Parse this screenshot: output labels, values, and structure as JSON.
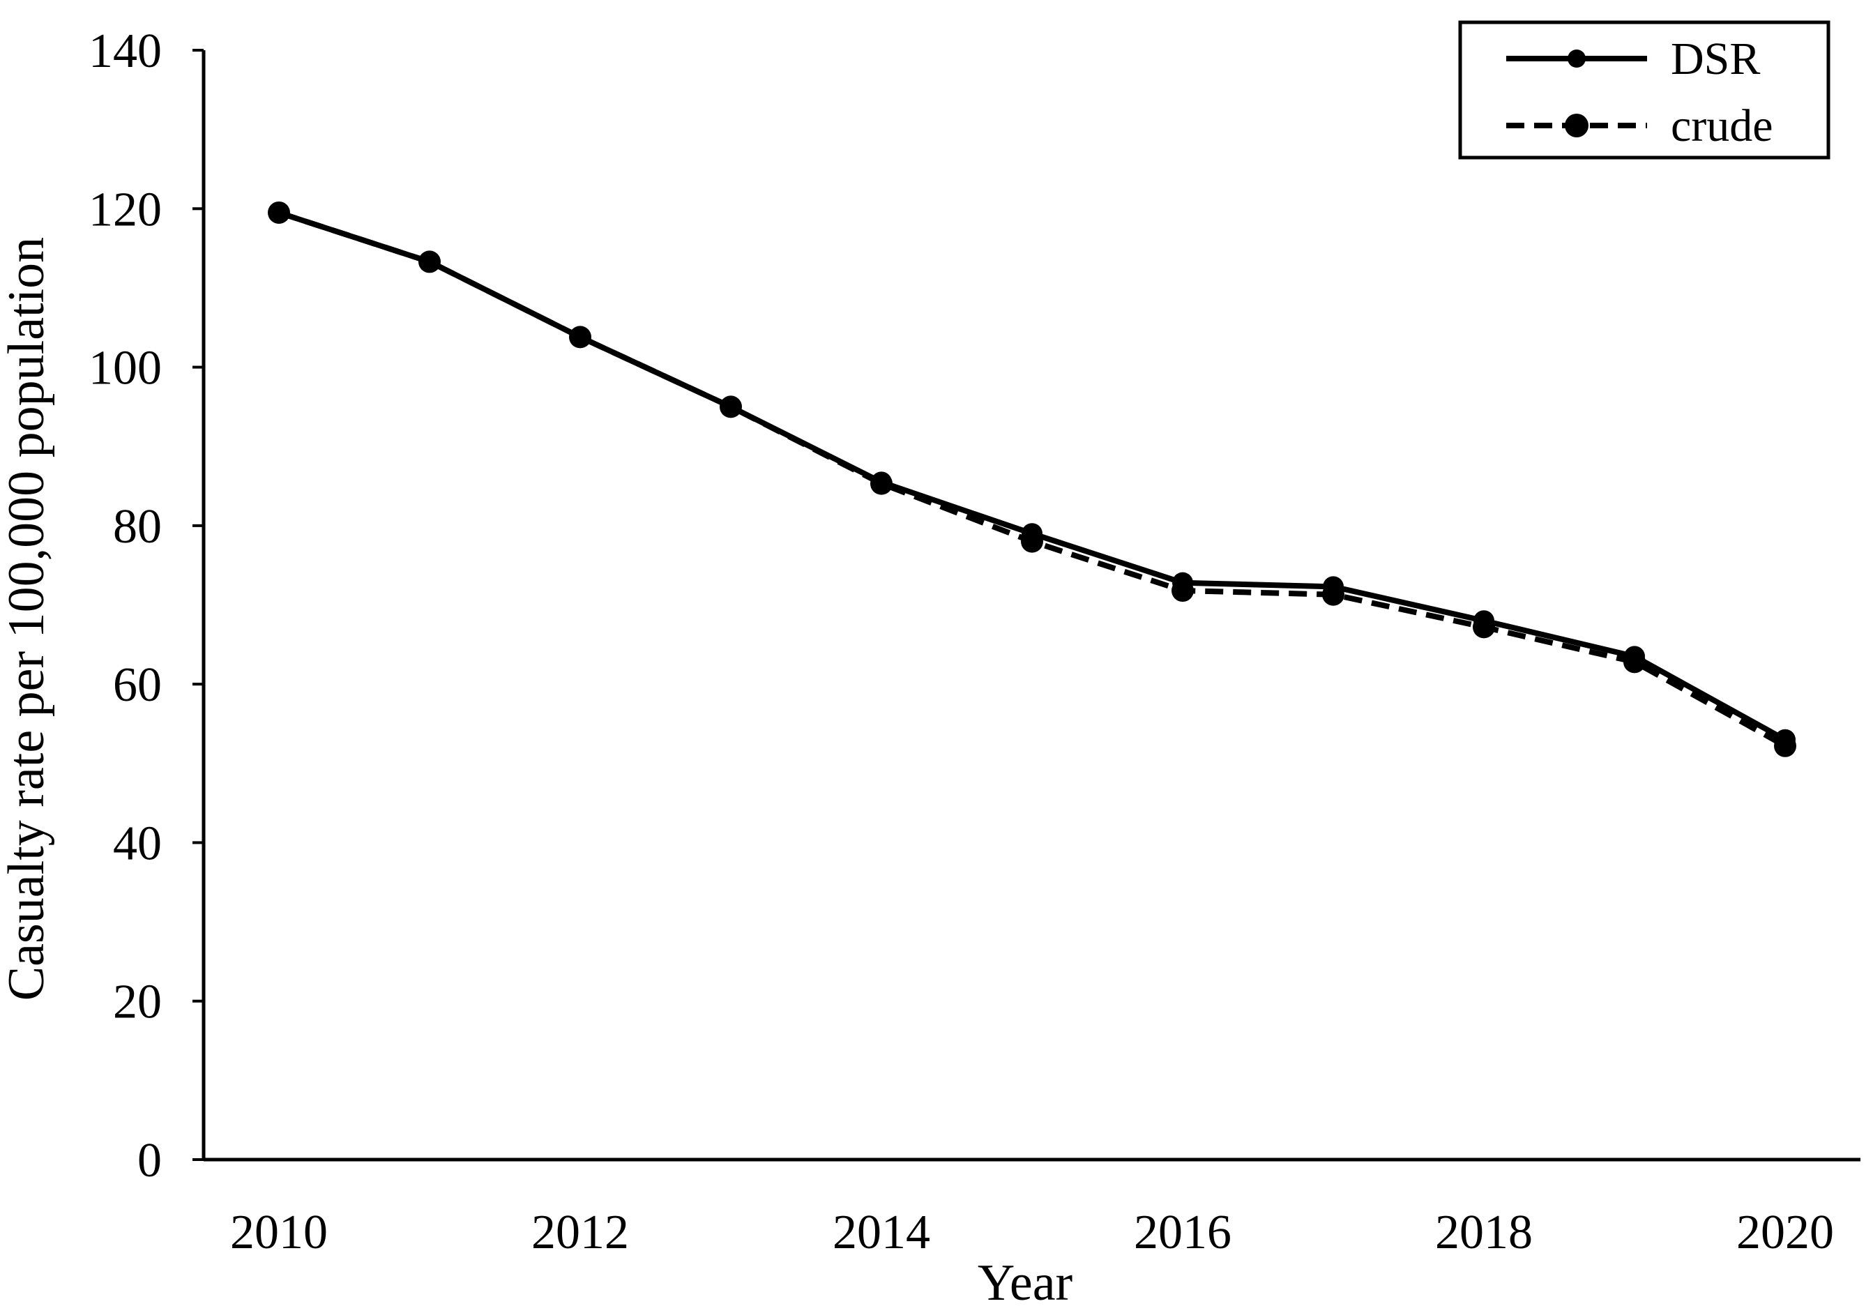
{
  "chart_data": {
    "type": "line",
    "title": "",
    "xlabel": "Year",
    "ylabel": "Casualty rate per 100,000 population",
    "x": [
      2010,
      2011,
      2012,
      2013,
      2014,
      2015,
      2016,
      2017,
      2018,
      2019,
      2020
    ],
    "xlim": [
      2009.5,
      2020.5
    ],
    "ylim": [
      0,
      140
    ],
    "x_ticks": [
      2010,
      2012,
      2014,
      2016,
      2018,
      2020
    ],
    "y_ticks": [
      0,
      20,
      40,
      60,
      80,
      100,
      120,
      140
    ],
    "grid": false,
    "legend_position": "top-right",
    "series": [
      {
        "name": "DSR",
        "style": "solid",
        "color": "#000000",
        "values": [
          119.5,
          113.3,
          103.8,
          95.0,
          85.5,
          79.0,
          72.8,
          72.3,
          68.0,
          63.5,
          53.0
        ]
      },
      {
        "name": "crude",
        "style": "dashed",
        "color": "#000000",
        "values": [
          119.5,
          113.3,
          103.8,
          95.0,
          85.3,
          78.0,
          71.8,
          71.3,
          67.2,
          62.8,
          52.2
        ]
      }
    ]
  }
}
